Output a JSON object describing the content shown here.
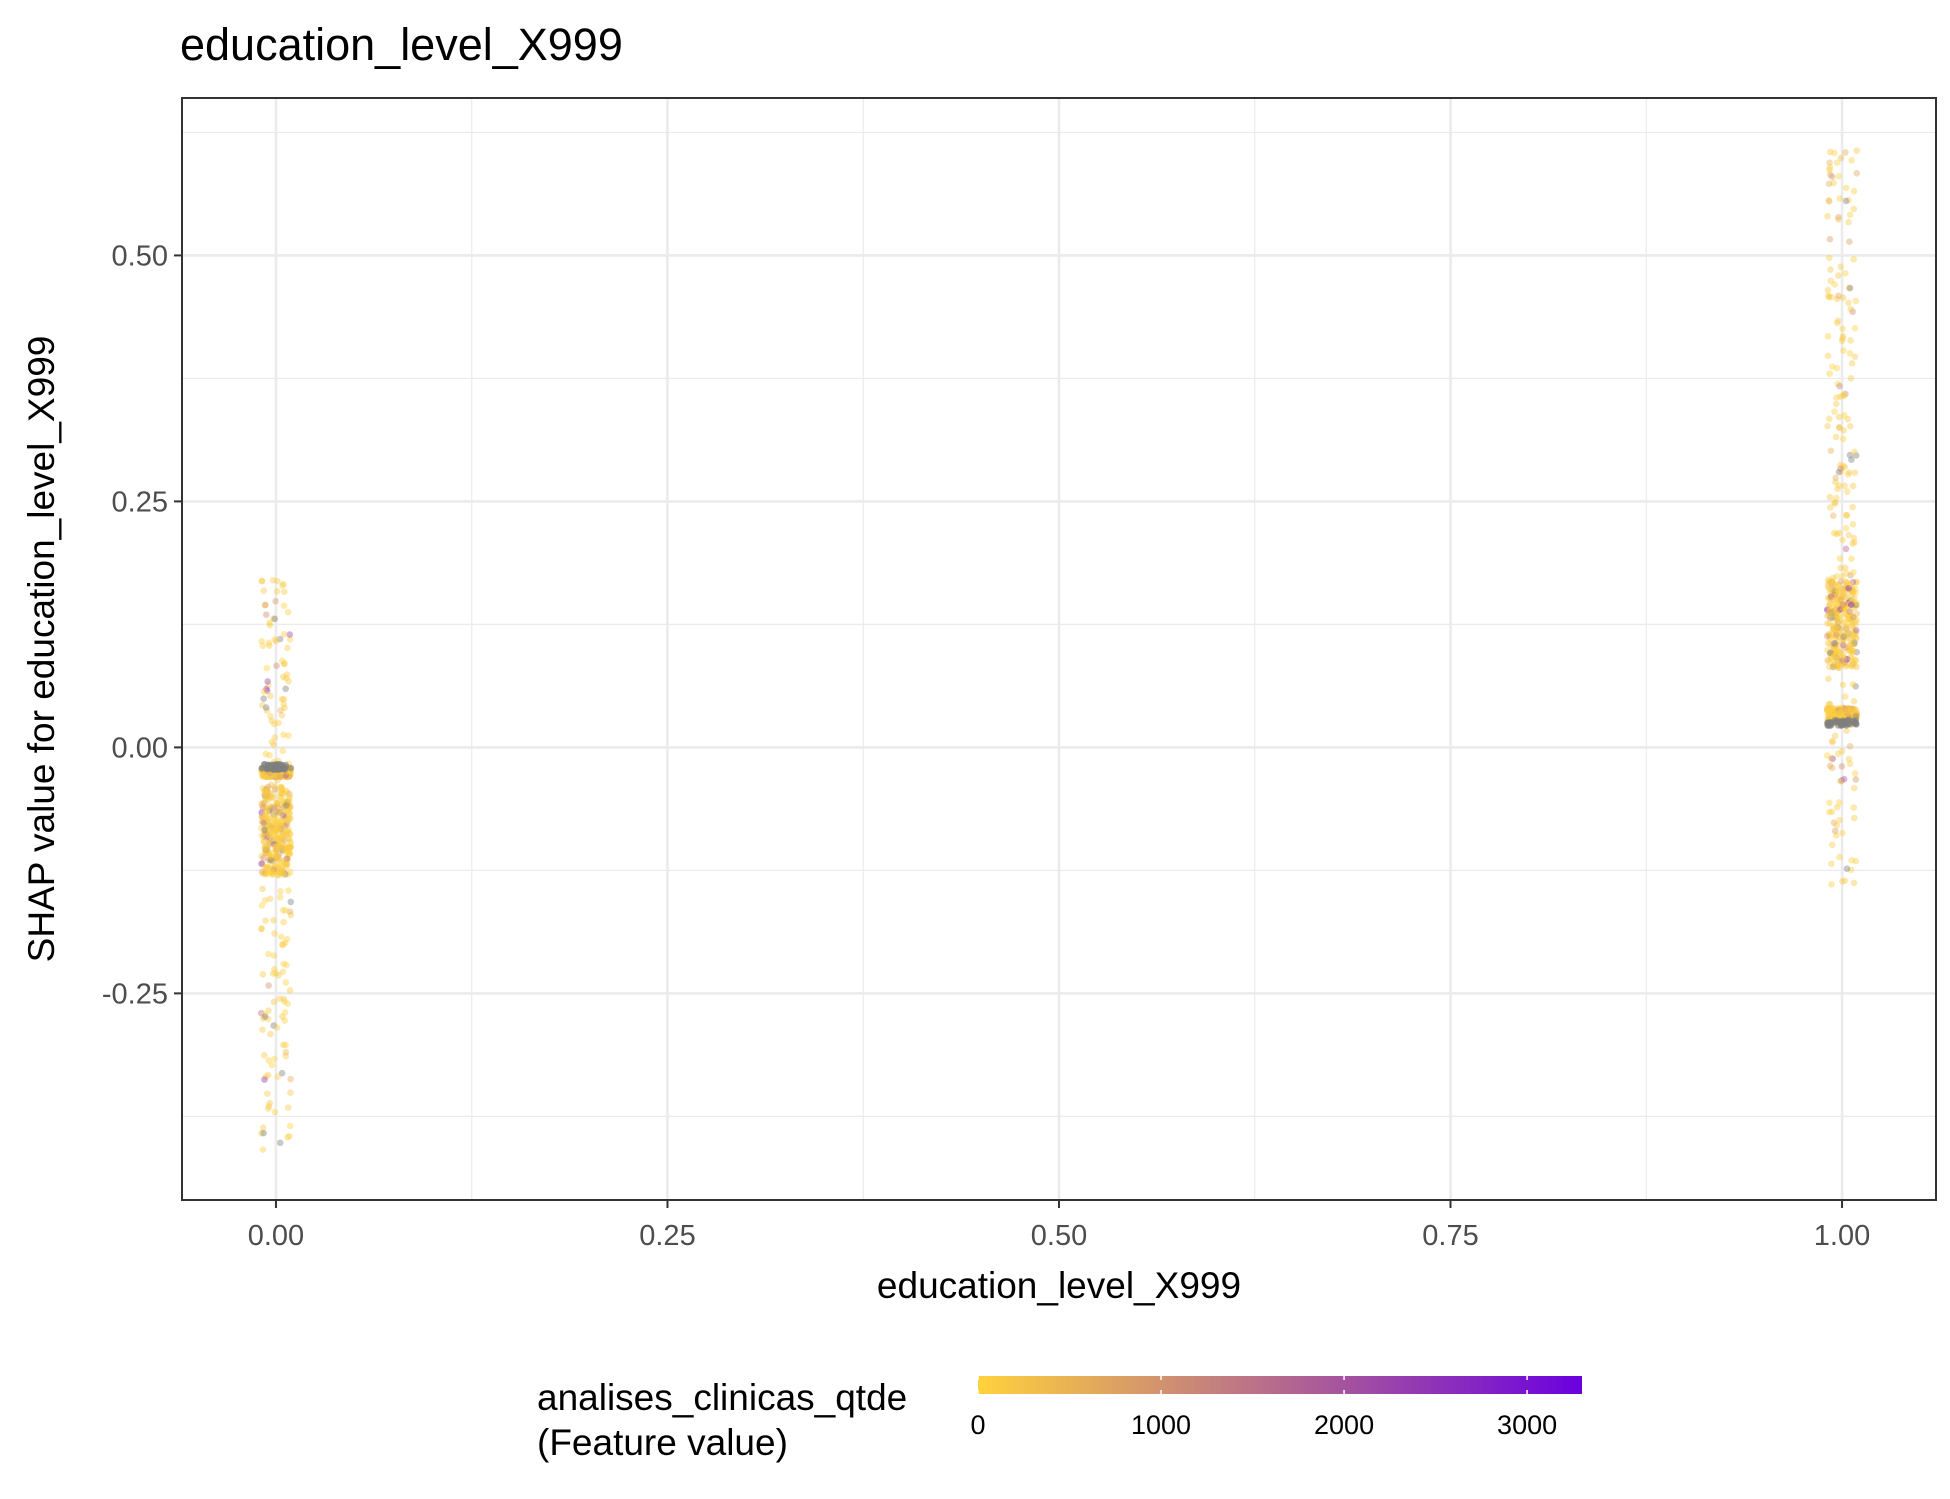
{
  "chart_data": {
    "type": "scatter",
    "title": "education_level_X999",
    "xlabel": "education_level_X999",
    "ylabel": "SHAP value for education_level_X999",
    "xlim": [
      -0.06,
      1.06
    ],
    "ylim": [
      -0.46,
      0.66
    ],
    "x_ticks": [
      0.0,
      0.25,
      0.5,
      0.75,
      1.0
    ],
    "x_tick_labels": [
      "0.00",
      "0.25",
      "0.50",
      "0.75",
      "1.00"
    ],
    "y_ticks": [
      -0.25,
      0.0,
      0.25,
      0.5
    ],
    "y_tick_labels": [
      "-0.25",
      "0.00",
      "0.25",
      "0.50"
    ],
    "grid": true,
    "legend": {
      "position": "bottom",
      "title_line1": "analises_clinicas_qtde",
      "title_line2": "(Feature value)",
      "scale_min": 0,
      "scale_max": 3300,
      "ticks": [
        0,
        1000,
        2000,
        3000
      ],
      "tick_labels": [
        "0",
        "1000",
        "2000",
        "3000"
      ],
      "color_low": "#FFD23C",
      "color_high": "#6A00E0",
      "na_color": "#7f7f7f"
    },
    "groups": [
      {
        "x": 0.0,
        "shap_range": [
          -0.41,
          0.17
        ],
        "dense_band": [
          -0.02,
          -0.03
        ],
        "core_range": [
          -0.13,
          -0.04
        ],
        "gray_band": -0.02,
        "point_count": 700
      },
      {
        "x": 1.0,
        "shap_range": [
          -0.14,
          0.61
        ],
        "dense_band": [
          0.025,
          0.04
        ],
        "core_range": [
          0.08,
          0.17
        ],
        "gray_band": 0.025,
        "point_count": 700
      }
    ]
  }
}
